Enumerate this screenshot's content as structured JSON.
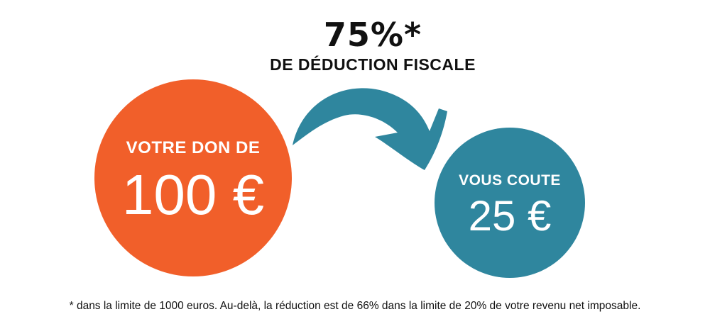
{
  "headline": {
    "percent": "75%*",
    "subtitle": "DE DÉDUCTION FISCALE"
  },
  "donation_circle": {
    "label": "VOTRE DON DE",
    "amount": "100 €",
    "color": "#f15f2a"
  },
  "cost_circle": {
    "label": "VOUS COUTE",
    "amount": "25 €",
    "color": "#2f869e"
  },
  "arrow": {
    "icon": "curved-arrow-icon",
    "color": "#2f869e"
  },
  "footnote": "* dans la limite de 1000 euros. Au-delà, la réduction est de 66% dans la limite de 20% de votre revenu net imposable."
}
